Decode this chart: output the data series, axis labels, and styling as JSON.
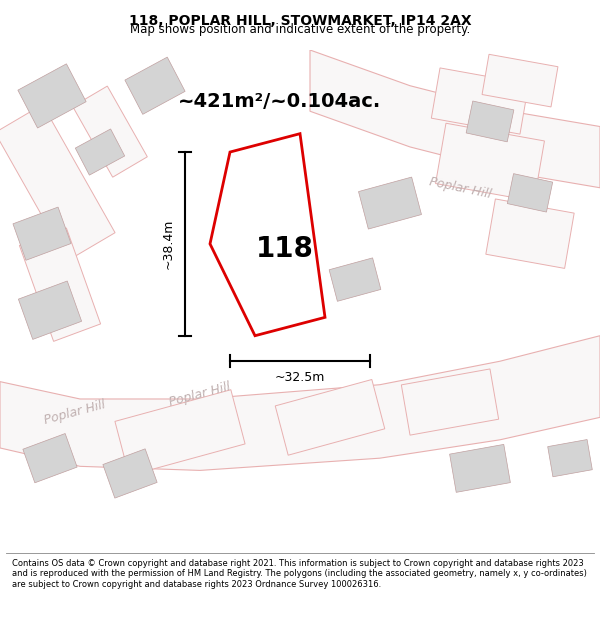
{
  "title": "118, POPLAR HILL, STOWMARKET, IP14 2AX",
  "subtitle": "Map shows position and indicative extent of the property.",
  "footer": "Contains OS data © Crown copyright and database right 2021. This information is subject to Crown copyright and database rights 2023 and is reproduced with the permission of HM Land Registry. The polygons (including the associated geometry, namely x, y co-ordinates) are subject to Crown copyright and database rights 2023 Ordnance Survey 100026316.",
  "area_label": "~421m²/~0.104ac.",
  "property_number": "118",
  "dim_height": "~38.4m",
  "dim_width": "~32.5m",
  "map_bg": "#f9f7f7",
  "road_outline_color": "#e8b0b0",
  "building_fill": "#d4d4d4",
  "building_edge": "#c0a0a0",
  "plot_color": "#dd0000",
  "road_label_color": "#c0b0b0",
  "title_fontsize": 10,
  "subtitle_fontsize": 8.5
}
